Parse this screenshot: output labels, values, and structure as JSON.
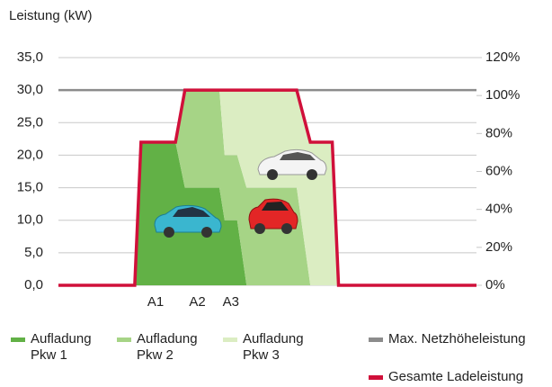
{
  "chart_data": {
    "type": "area",
    "title": "Leistung (kW)",
    "xlim": [
      0,
      40
    ],
    "xticks": [
      {
        "value": 9.3,
        "label": "A1"
      },
      {
        "value": 13.3,
        "label": "A2"
      },
      {
        "value": 16.5,
        "label": "A3"
      }
    ],
    "ylim": [
      0,
      35
    ],
    "yticks": [
      {
        "value": 0,
        "label": "0,0"
      },
      {
        "value": 5,
        "label": "5,0"
      },
      {
        "value": 10,
        "label": "10,0"
      },
      {
        "value": 15,
        "label": "15,0"
      },
      {
        "value": 20,
        "label": "20,0"
      },
      {
        "value": 25,
        "label": "25,0"
      },
      {
        "value": 30,
        "label": "30,0"
      },
      {
        "value": 35,
        "label": "35,0"
      }
    ],
    "y2lim": [
      0,
      120
    ],
    "y2ticks": [
      {
        "value": 0,
        "label": "0%"
      },
      {
        "value": 20,
        "label": "20%"
      },
      {
        "value": 40,
        "label": "40%"
      },
      {
        "value": 60,
        "label": "60%"
      },
      {
        "value": 80,
        "label": "80%"
      },
      {
        "value": 100,
        "label": "100%"
      },
      {
        "value": 120,
        "label": "120%"
      }
    ],
    "grid": true,
    "series": [
      {
        "name": "Aufladung Pkw 1",
        "type": "area",
        "stacked": true,
        "color": "#62b146",
        "x": [
          0,
          7.3,
          7.9,
          11.2,
          12.1,
          15.4,
          15.9,
          17.1,
          18,
          22.8,
          24.1,
          26.2,
          26.8,
          40
        ],
        "values": [
          0,
          0,
          22,
          22,
          15,
          15,
          10,
          10,
          0,
          0,
          0,
          0,
          0,
          0
        ]
      },
      {
        "name": "Aufladung Pkw 2",
        "type": "area",
        "stacked": true,
        "color": "#a6d486",
        "x": [
          0,
          7.3,
          7.9,
          11.2,
          12.1,
          15.4,
          15.9,
          17.1,
          18,
          22.8,
          24.1,
          26.2,
          26.8,
          40
        ],
        "values": [
          0,
          0,
          0,
          0,
          15,
          15,
          10,
          10,
          15,
          15,
          0,
          0,
          0,
          0
        ]
      },
      {
        "name": "Aufladung Pkw 3",
        "type": "area",
        "stacked": true,
        "color": "#dbedc2",
        "x": [
          0,
          7.3,
          7.9,
          11.2,
          12.1,
          15.4,
          15.9,
          17.1,
          18,
          22.8,
          24.1,
          26.2,
          26.8,
          40
        ],
        "values": [
          0,
          0,
          0,
          0,
          0,
          0,
          10,
          10,
          15,
          15,
          22,
          22,
          0,
          0
        ]
      },
      {
        "name": "Max. Netzhöheleistung",
        "type": "line",
        "color": "#8c8c8c",
        "x": [
          0,
          40
        ],
        "values": [
          30,
          30
        ]
      },
      {
        "name": "Gesamte Ladeleistung",
        "type": "line",
        "color": "#d0103a",
        "x": [
          0,
          7.3,
          7.9,
          11.2,
          12.1,
          15.4,
          15.9,
          17.1,
          18,
          22.8,
          24.1,
          26.2,
          26.8,
          40
        ],
        "values": [
          0,
          0,
          22,
          22,
          30,
          30,
          30,
          30,
          30,
          30,
          22,
          22,
          0,
          0
        ]
      }
    ]
  }
}
